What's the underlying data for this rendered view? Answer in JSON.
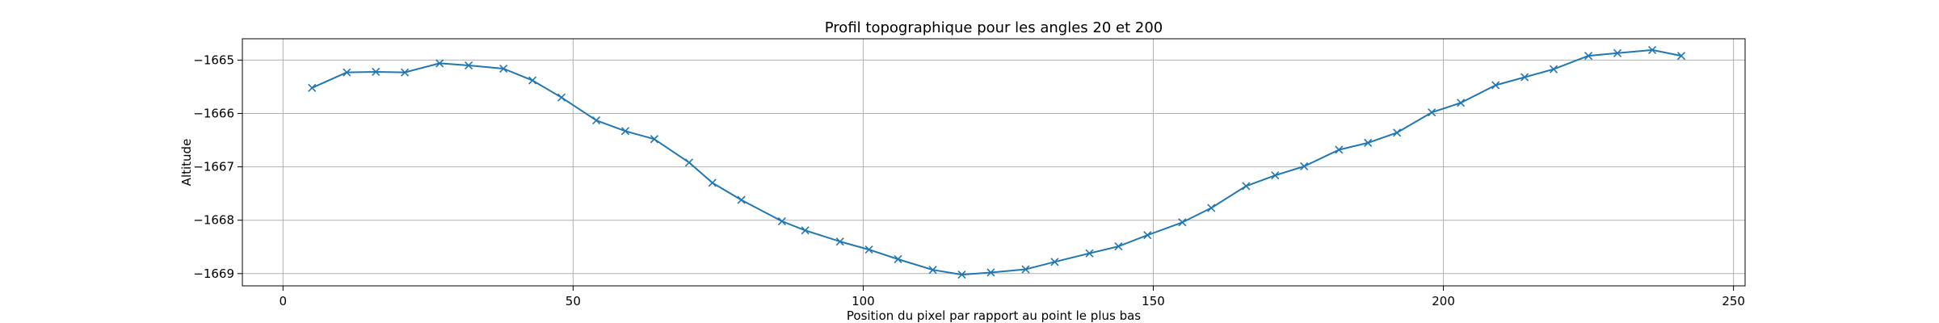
{
  "chart_data": {
    "type": "line",
    "title": "Profil topographique pour les angles 20 et 200",
    "xlabel": "Position du pixel par rapport au point le plus bas",
    "ylabel": "Altitude",
    "xlim": [
      -7,
      252
    ],
    "ylim": [
      -1669.23,
      -1664.6
    ],
    "xticks": [
      0,
      50,
      100,
      150,
      200,
      250
    ],
    "yticks": [
      -1665,
      -1666,
      -1667,
      -1668,
      -1669
    ],
    "xtick_labels": [
      "0",
      "50",
      "100",
      "150",
      "200",
      "250"
    ],
    "ytick_labels": [
      "−1665",
      "−1666",
      "−1667",
      "−1668",
      "−1669"
    ],
    "grid": true,
    "marker": "x",
    "line_color": "#1f77b4",
    "series": [
      {
        "x": [
          5,
          11,
          16,
          21,
          27,
          32,
          38,
          43,
          48,
          54,
          59,
          64,
          70,
          74,
          79,
          86,
          90,
          96,
          101,
          106,
          112,
          117,
          122,
          128,
          133,
          139,
          144,
          149,
          155,
          160,
          166,
          171,
          176,
          182,
          187,
          192,
          198,
          203,
          209,
          214,
          219,
          225,
          230,
          236,
          241
        ],
        "y": [
          -1665.52,
          -1665.23,
          -1665.22,
          -1665.23,
          -1665.06,
          -1665.1,
          -1665.16,
          -1665.38,
          -1665.7,
          -1666.13,
          -1666.33,
          -1666.48,
          -1666.92,
          -1667.3,
          -1667.62,
          -1668.02,
          -1668.19,
          -1668.4,
          -1668.55,
          -1668.73,
          -1668.93,
          -1669.02,
          -1668.98,
          -1668.92,
          -1668.78,
          -1668.62,
          -1668.49,
          -1668.28,
          -1668.04,
          -1667.77,
          -1667.36,
          -1667.16,
          -1666.99,
          -1666.68,
          -1666.55,
          -1666.36,
          -1665.98,
          -1665.8,
          -1665.47,
          -1665.32,
          -1665.17,
          -1664.92,
          -1664.87,
          -1664.81,
          -1664.92
        ]
      }
    ]
  }
}
